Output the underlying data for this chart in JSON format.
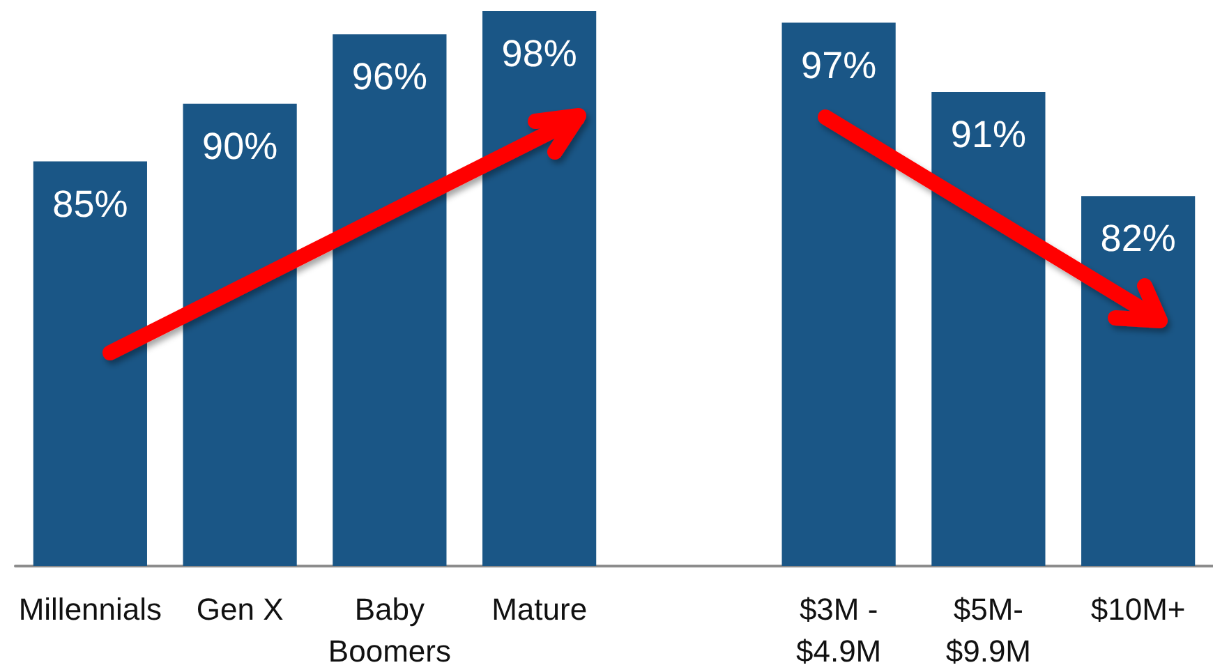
{
  "chart_data": {
    "type": "bar",
    "categories": [
      "Millennials",
      "Gen X",
      "Baby\nBoomers",
      "Mature",
      null,
      "$3M -\n$4.9M",
      "$5M-\n$9.9M",
      "$10M+"
    ],
    "values": [
      85,
      90,
      96,
      98,
      null,
      97,
      91,
      82
    ],
    "value_labels": [
      "85%",
      "90%",
      "96%",
      "98%",
      null,
      "97%",
      "91%",
      "82%"
    ],
    "color": "#1a5686",
    "ylim": [
      50,
      98
    ],
    "tick_labels": "x"
  }
}
